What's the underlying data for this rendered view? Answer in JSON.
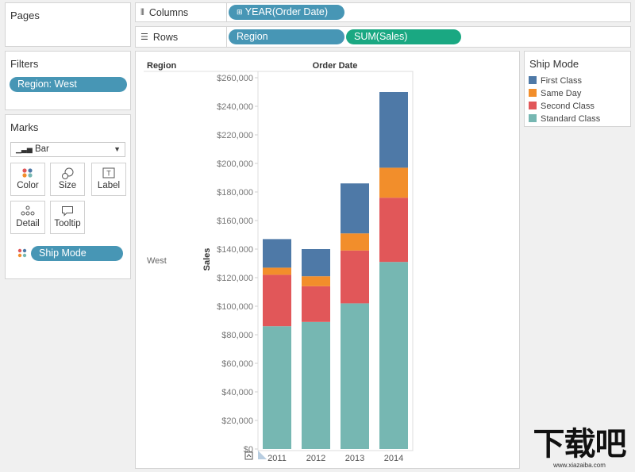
{
  "pages": {
    "title": "Pages"
  },
  "columns_shelf": {
    "label": "Columns",
    "pill": "YEAR(Order Date)"
  },
  "rows_shelf": {
    "label": "Rows",
    "pills": [
      "Region",
      "SUM(Sales)"
    ]
  },
  "filters": {
    "title": "Filters",
    "pill": "Region: West"
  },
  "marks": {
    "title": "Marks",
    "type": "Bar",
    "buttons": [
      {
        "label": "Color",
        "icon": "color-dots-icon"
      },
      {
        "label": "Size",
        "icon": "size-icon"
      },
      {
        "label": "Label",
        "icon": "text-label-icon"
      },
      {
        "label": "Detail",
        "icon": "detail-dots-icon"
      },
      {
        "label": "Tooltip",
        "icon": "tooltip-icon"
      }
    ],
    "color_pill": "Ship Mode"
  },
  "legend": {
    "title": "Ship Mode",
    "items": [
      {
        "label": "First Class",
        "color": "#4e79a7"
      },
      {
        "label": "Same Day",
        "color": "#f28e2b"
      },
      {
        "label": "Second Class",
        "color": "#e15759"
      },
      {
        "label": "Standard Class",
        "color": "#76b7b2"
      }
    ]
  },
  "view": {
    "row_header": "Region",
    "col_header": "Order Date",
    "region_label": "West"
  },
  "watermark": {
    "text": "下载吧",
    "sub": "www.xiazaiba.com"
  },
  "chart_data": {
    "type": "bar",
    "stacked": true,
    "categories": [
      "2011",
      "2012",
      "2013",
      "2014"
    ],
    "series": [
      {
        "name": "Standard Class",
        "color": "#76b7b2",
        "values": [
          86000,
          89000,
          102000,
          131000
        ]
      },
      {
        "name": "Second Class",
        "color": "#e15759",
        "values": [
          36000,
          25000,
          37000,
          45000
        ]
      },
      {
        "name": "Same Day",
        "color": "#f28e2b",
        "values": [
          5000,
          7000,
          12000,
          21000
        ]
      },
      {
        "name": "First Class",
        "color": "#4e79a7",
        "values": [
          20000,
          19000,
          35000,
          53000
        ]
      }
    ],
    "ylabel": "Sales",
    "ylim": [
      0,
      260000
    ],
    "yticks": [
      "$0",
      "$20,000",
      "$40,000",
      "$60,000",
      "$80,000",
      "$100,000",
      "$120,000",
      "$140,000",
      "$160,000",
      "$180,000",
      "$200,000",
      "$220,000",
      "$240,000",
      "$260,000"
    ]
  }
}
